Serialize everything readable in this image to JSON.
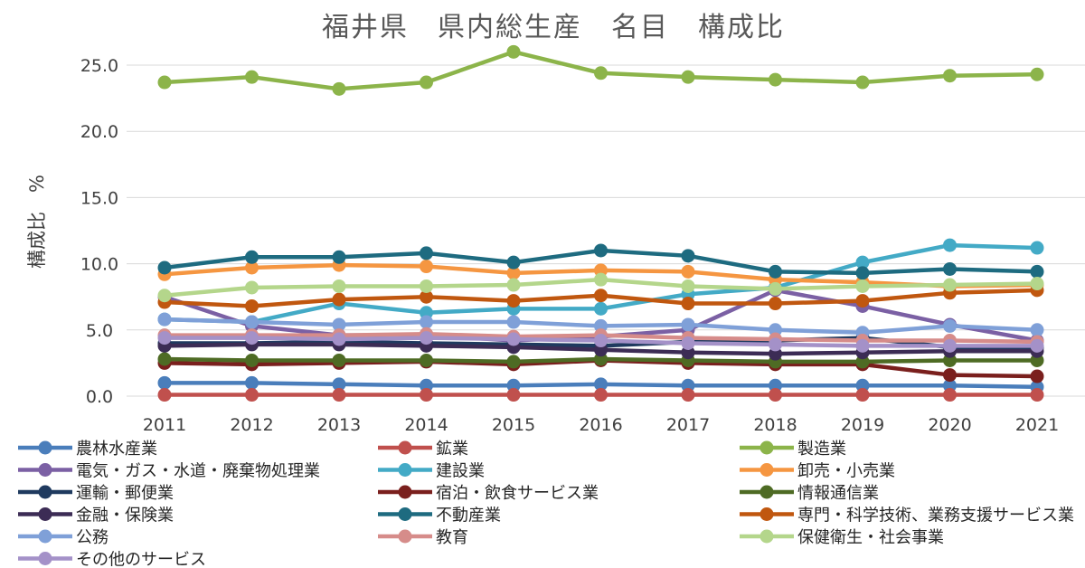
{
  "chart_data": {
    "type": "line",
    "title": "福井県　県内総生産　名目　構成比",
    "ylabel": "構成比　%",
    "xlabel": "",
    "x": [
      "2011",
      "2012",
      "2013",
      "2014",
      "2015",
      "2016",
      "2017",
      "2018",
      "2019",
      "2020",
      "2021"
    ],
    "ylim": [
      0,
      25
    ],
    "yticks": [
      "0.0",
      "5.0",
      "10.0",
      "15.0",
      "20.0",
      "25.0"
    ],
    "ytick_values": [
      0,
      5,
      10,
      15,
      20,
      25
    ],
    "grid": true,
    "legend_position": "bottom",
    "series": [
      {
        "name": "農林水産業",
        "color": "#4a7ebb",
        "values": [
          1.0,
          1.0,
          0.9,
          0.8,
          0.8,
          0.9,
          0.8,
          0.8,
          0.8,
          0.8,
          0.7
        ]
      },
      {
        "name": "鉱業",
        "color": "#c0504d",
        "values": [
          0.1,
          0.1,
          0.1,
          0.1,
          0.1,
          0.1,
          0.1,
          0.1,
          0.1,
          0.1,
          0.1
        ]
      },
      {
        "name": "製造業",
        "color": "#8cb44a",
        "values": [
          23.7,
          24.1,
          23.2,
          23.7,
          26.0,
          24.4,
          24.1,
          23.9,
          23.7,
          24.2,
          24.3
        ]
      },
      {
        "name": "電気・ガス・水道・廃棄物処理業",
        "color": "#7b60a4",
        "values": [
          7.5,
          5.3,
          4.6,
          4.6,
          4.2,
          4.5,
          5.0,
          8.0,
          6.8,
          5.4,
          4.2
        ]
      },
      {
        "name": "建設業",
        "color": "#43aac6",
        "values": [
          5.8,
          5.6,
          7.0,
          6.3,
          6.6,
          6.6,
          7.7,
          8.2,
          10.1,
          11.4,
          11.2
        ]
      },
      {
        "name": "卸売・小売業",
        "color": "#f59641",
        "values": [
          9.2,
          9.7,
          9.9,
          9.8,
          9.3,
          9.5,
          9.4,
          8.8,
          8.6,
          8.3,
          8.4
        ]
      },
      {
        "name": "運輸・郵便業",
        "color": "#1f3a5f",
        "values": [
          4.0,
          4.0,
          4.1,
          4.0,
          3.9,
          3.8,
          4.1,
          4.2,
          4.4,
          3.7,
          3.7
        ]
      },
      {
        "name": "宿泊・飲食サービス業",
        "color": "#7a1f1d",
        "values": [
          2.5,
          2.4,
          2.5,
          2.6,
          2.4,
          2.7,
          2.5,
          2.4,
          2.4,
          1.6,
          1.5
        ]
      },
      {
        "name": "情報通信業",
        "color": "#4e6b24",
        "values": [
          2.8,
          2.7,
          2.7,
          2.7,
          2.6,
          2.8,
          2.7,
          2.6,
          2.6,
          2.7,
          2.7
        ]
      },
      {
        "name": "金融・保険業",
        "color": "#3c2c55",
        "values": [
          3.8,
          3.9,
          3.9,
          3.8,
          3.7,
          3.5,
          3.3,
          3.2,
          3.3,
          3.4,
          3.4
        ]
      },
      {
        "name": "不動産業",
        "color": "#1e6b80",
        "values": [
          9.7,
          10.5,
          10.5,
          10.8,
          10.1,
          11.0,
          10.6,
          9.4,
          9.3,
          9.6,
          9.4
        ]
      },
      {
        "name": "専門・科学技術、業務支援サービス業",
        "color": "#c0570f",
        "values": [
          7.1,
          6.8,
          7.3,
          7.5,
          7.2,
          7.6,
          7.0,
          7.0,
          7.2,
          7.8,
          8.0
        ]
      },
      {
        "name": "公務",
        "color": "#7fa0d8",
        "values": [
          5.8,
          5.6,
          5.4,
          5.6,
          5.6,
          5.3,
          5.4,
          5.0,
          4.8,
          5.3,
          5.0
        ]
      },
      {
        "name": "教育",
        "color": "#d68c8a",
        "values": [
          4.6,
          4.6,
          4.6,
          4.7,
          4.5,
          4.6,
          4.4,
          4.3,
          4.2,
          4.2,
          4.1
        ]
      },
      {
        "name": "保健衛生・社会事業",
        "color": "#b4d68b",
        "values": [
          7.6,
          8.2,
          8.3,
          8.3,
          8.4,
          8.8,
          8.3,
          8.1,
          8.3,
          8.4,
          8.5
        ]
      },
      {
        "name": "その他のサービス",
        "color": "#a491c8",
        "values": [
          4.4,
          4.4,
          4.3,
          4.4,
          4.3,
          4.2,
          4.0,
          3.9,
          3.8,
          3.8,
          3.8
        ]
      }
    ]
  }
}
